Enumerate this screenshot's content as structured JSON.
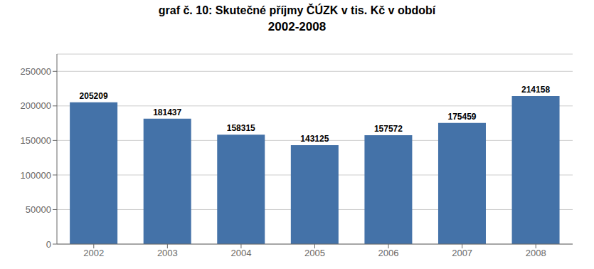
{
  "chart_data": {
    "type": "bar",
    "title": "graf č. 10: Skutečné příjmy ČÚZK v tis. Kč v období",
    "subtitle": "2002-2008",
    "categories": [
      "2002",
      "2003",
      "2004",
      "2005",
      "2006",
      "2007",
      "2008"
    ],
    "values": [
      205209,
      181437,
      158315,
      143125,
      157572,
      175459,
      214158
    ],
    "color": "#4472a8",
    "ylim": [
      0,
      275000
    ],
    "yticks": [
      0,
      50000,
      100000,
      150000,
      200000,
      250000
    ],
    "grid": true,
    "data_labels": true
  }
}
